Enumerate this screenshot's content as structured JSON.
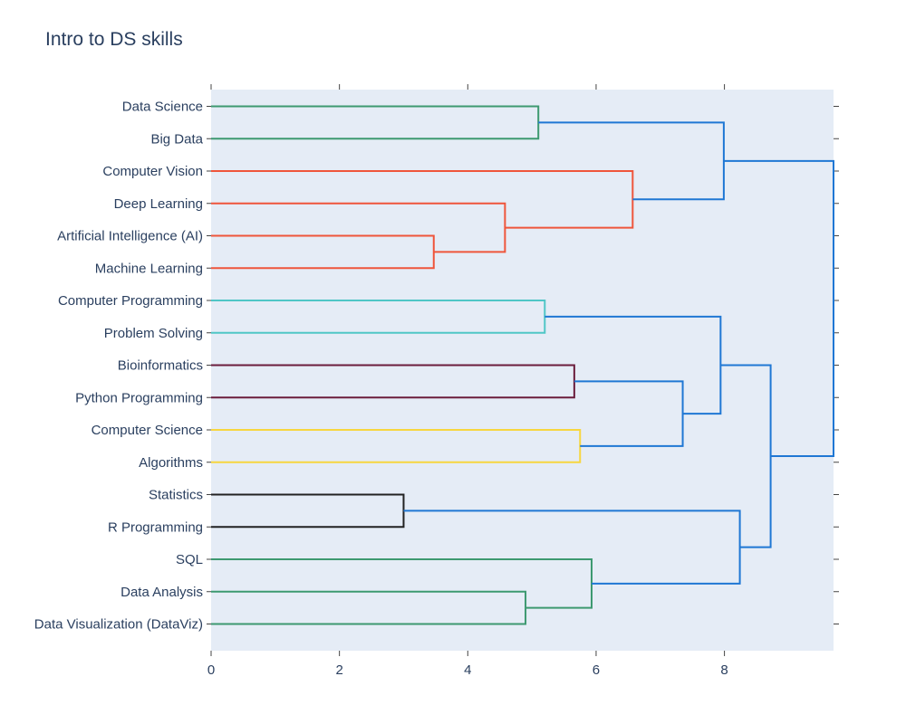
{
  "chart_data": {
    "type": "dendrogram",
    "title": "Intro to DS skills",
    "orientation": "left",
    "xlim": [
      0,
      9.7
    ],
    "xticks": [
      0,
      2,
      4,
      6,
      8
    ],
    "grid": false,
    "plot_background": "#e5ecf6",
    "leaves": [
      "Data Science",
      "Big Data",
      "Computer Vision",
      "Deep Learning",
      "Artificial Intelligence (AI)",
      "Machine Learning",
      "Computer Programming",
      "Problem Solving",
      "Bioinformatics",
      "Python Programming",
      "Computer Science",
      "Algorithms",
      "Statistics",
      "R Programming",
      "SQL",
      "Data Analysis",
      "Data Visualization (DataViz)"
    ],
    "links": [
      {
        "a": "Data Science",
        "b": "Big Data",
        "height": 5.1,
        "color": "#3d9970"
      },
      {
        "a": "Artificial Intelligence (AI)",
        "b": "Machine Learning",
        "height": 3.47,
        "color": "#ef553b"
      },
      {
        "a": "Deep Learning",
        "b": "n2",
        "height": 4.58,
        "color": "#ef553b"
      },
      {
        "a": "Computer Vision",
        "b": "n3",
        "height": 6.57,
        "color": "#ef553b"
      },
      {
        "a": "n1",
        "b": "n4",
        "height": 7.99,
        "color": "#1f77d4"
      },
      {
        "a": "Computer Programming",
        "b": "Problem Solving",
        "height": 5.2,
        "color": "#4fc6c6"
      },
      {
        "a": "Bioinformatics",
        "b": "Python Programming",
        "height": 5.66,
        "color": "#6b1d3c"
      },
      {
        "a": "Computer Science",
        "b": "Algorithms",
        "height": 5.75,
        "color": "#f7d63f"
      },
      {
        "a": "n7",
        "b": "n8",
        "height": 7.35,
        "color": "#1f77d4"
      },
      {
        "a": "n6",
        "b": "n9",
        "height": 7.94,
        "color": "#1f77d4"
      },
      {
        "a": "Statistics",
        "b": "R Programming",
        "height": 3.0,
        "color": "#222222"
      },
      {
        "a": "Data Analysis",
        "b": "Data Visualization (DataViz)",
        "height": 4.9,
        "color": "#3d9970"
      },
      {
        "a": "SQL",
        "b": "n12",
        "height": 5.93,
        "color": "#3d9970"
      },
      {
        "a": "n11",
        "b": "n13",
        "height": 8.24,
        "color": "#1f77d4"
      },
      {
        "a": "n10",
        "b": "n14",
        "height": 8.72,
        "color": "#1f77d4"
      },
      {
        "a": "n5",
        "b": "n15",
        "height": 9.7,
        "color": "#1f77d4"
      }
    ]
  }
}
